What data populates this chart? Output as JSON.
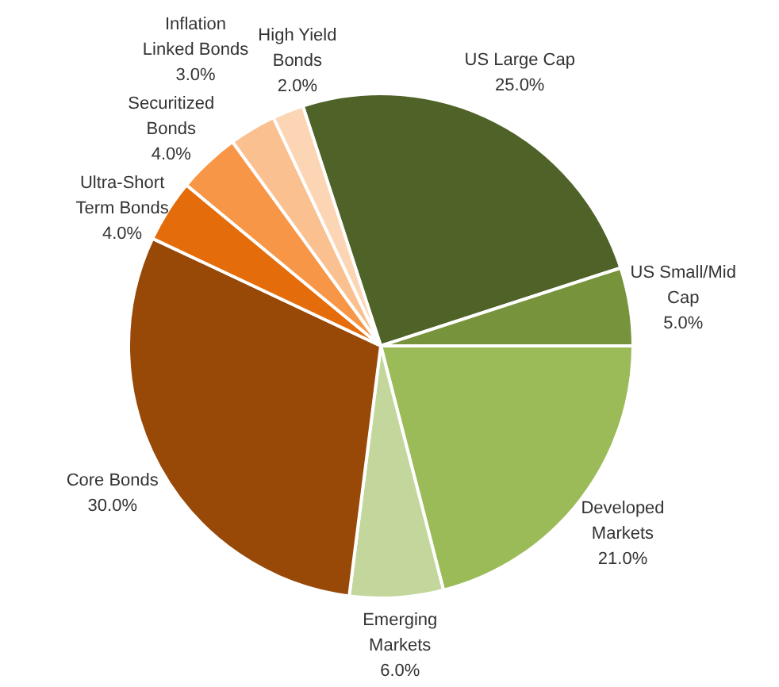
{
  "chart_data": {
    "type": "pie",
    "categories": [
      "US Large Cap",
      "US Small/Mid Cap",
      "Developed Markets",
      "Emerging Markets",
      "Core Bonds",
      "Ultra-Short Term Bonds",
      "Securitized Bonds",
      "Inflation Linked Bonds",
      "High Yield Bonds"
    ],
    "values": [
      25,
      5,
      21,
      6,
      30,
      4,
      4,
      3,
      2
    ],
    "value_labels": [
      "25.0%",
      "5.0%",
      "21.0%",
      "6.0%",
      "30.0%",
      "4.0%",
      "4.0%",
      "3.0%",
      "2.0%"
    ],
    "colors": [
      "#4f6228",
      "#77933c",
      "#9bbb59",
      "#c3d69b",
      "#984807",
      "#e46c0a",
      "#f79646",
      "#fac090",
      "#fcd5b5"
    ]
  }
}
